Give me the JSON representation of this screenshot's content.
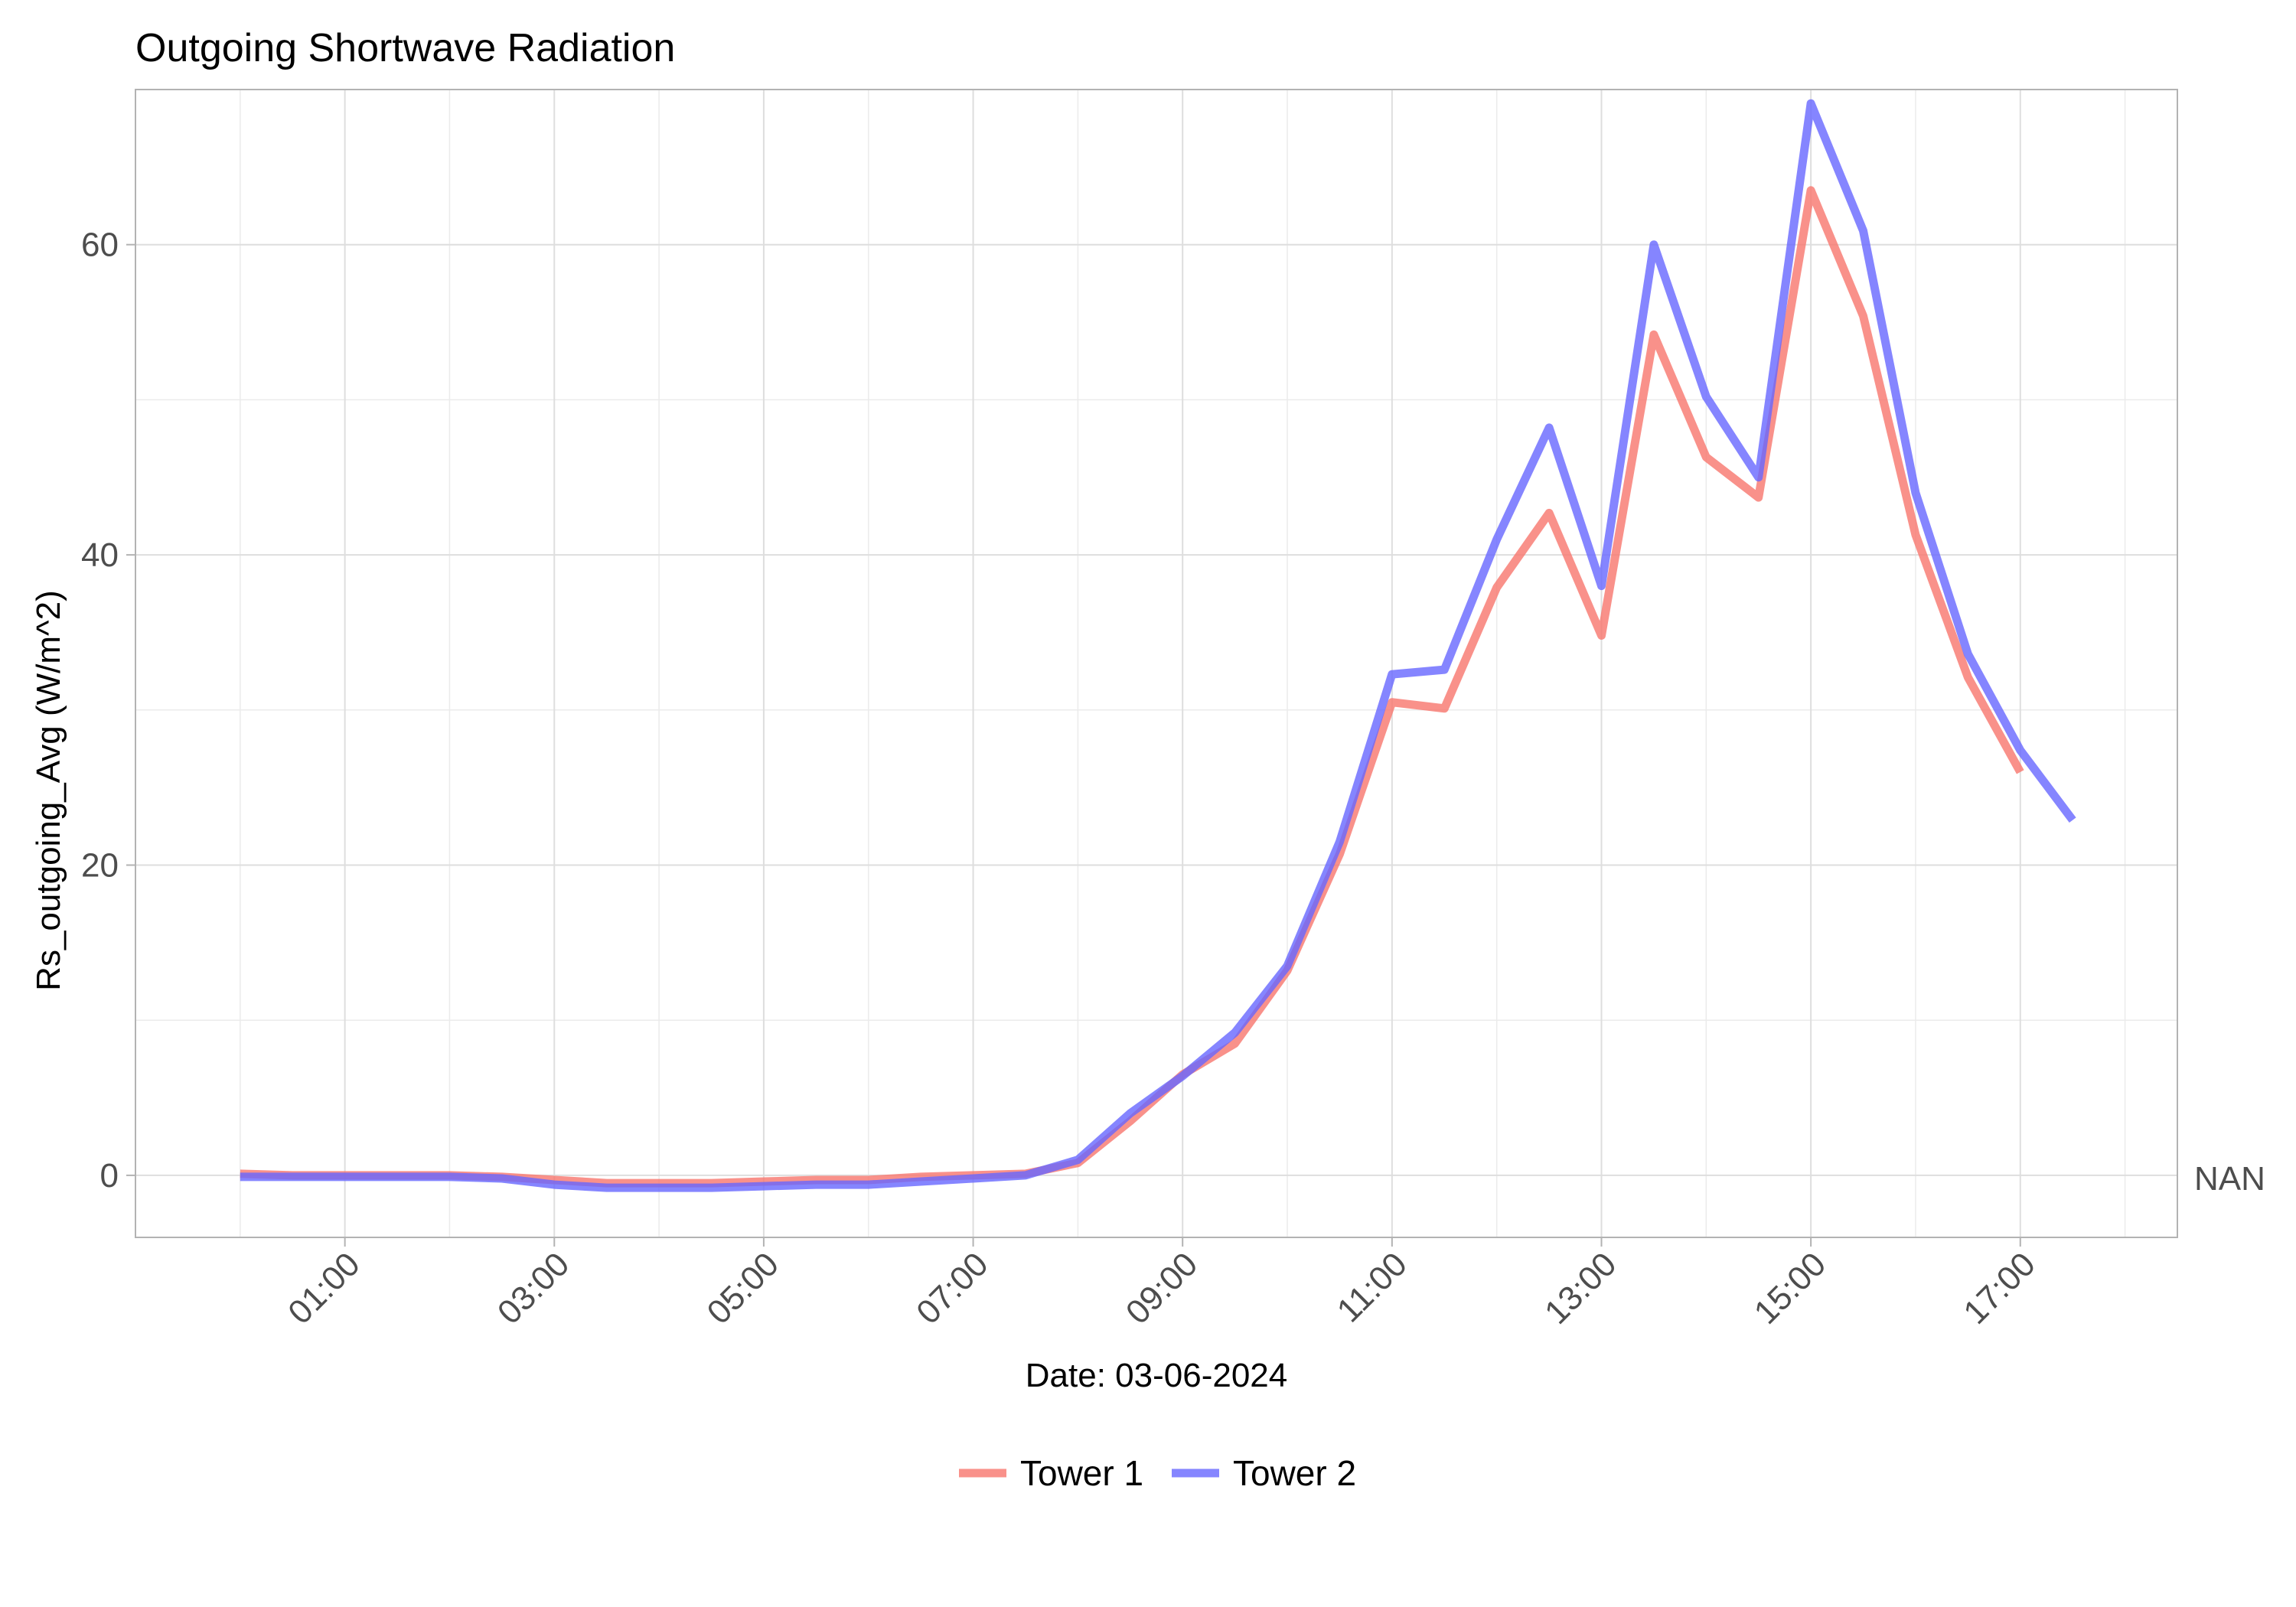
{
  "chart_data": {
    "type": "line",
    "title": "Outgoing Shortwave Radiation",
    "xlabel": "Date: 03-06-2024",
    "ylabel": "Rs_outgoing_Avg (W/m^2)",
    "x_ticks": [
      "01:00",
      "03:00",
      "05:00",
      "07:00",
      "09:00",
      "11:00",
      "13:00",
      "15:00",
      "17:00"
    ],
    "y_ticks": [
      0,
      20,
      40,
      60
    ],
    "xlim": [
      "-1:00",
      "18:30"
    ],
    "ylim": [
      -4,
      70
    ],
    "secondary_y_label": "NAN",
    "grid": true,
    "legend_position": "bottom",
    "series": [
      {
        "name": "Tower 1",
        "color": "#F8766D",
        "x": [
          "00:00",
          "00:30",
          "01:00",
          "01:30",
          "02:00",
          "02:30",
          "03:00",
          "03:30",
          "04:00",
          "04:30",
          "05:00",
          "05:30",
          "06:00",
          "06:30",
          "07:00",
          "07:30",
          "08:00",
          "08:30",
          "09:00",
          "09:30",
          "10:00",
          "10:30",
          "11:00",
          "11:30",
          "12:00",
          "12:30",
          "13:00",
          "13:30",
          "14:00",
          "14:30",
          "15:00",
          "15:30",
          "16:00",
          "16:30",
          "17:00"
        ],
        "values": [
          0.1,
          0.0,
          0.0,
          0.0,
          0.0,
          -0.1,
          -0.3,
          -0.5,
          -0.5,
          -0.5,
          -0.4,
          -0.3,
          -0.3,
          -0.1,
          0.0,
          0.1,
          0.8,
          3.5,
          6.5,
          8.5,
          13.2,
          20.7,
          30.5,
          30.1,
          37.9,
          42.7,
          34.8,
          54.2,
          46.3,
          43.7,
          63.5,
          55.4,
          41.3,
          32.1,
          26.0
        ]
      },
      {
        "name": "Tower 2",
        "color": "#6666FF",
        "x": [
          "00:00",
          "00:30",
          "01:00",
          "01:30",
          "02:00",
          "02:30",
          "03:00",
          "03:30",
          "04:00",
          "04:30",
          "05:00",
          "05:30",
          "06:00",
          "06:30",
          "07:00",
          "07:30",
          "08:00",
          "08:30",
          "09:00",
          "09:30",
          "10:00",
          "10:30",
          "11:00",
          "11:30",
          "12:00",
          "12:30",
          "13:00",
          "13:30",
          "14:00",
          "14:30",
          "15:00",
          "15:30",
          "16:00",
          "16:30",
          "17:00",
          "17:30"
        ],
        "values": [
          -0.1,
          -0.1,
          -0.1,
          -0.1,
          -0.1,
          -0.2,
          -0.6,
          -0.8,
          -0.8,
          -0.8,
          -0.7,
          -0.6,
          -0.6,
          -0.4,
          -0.2,
          0.0,
          1.0,
          4.0,
          6.4,
          9.2,
          13.5,
          21.5,
          32.3,
          32.6,
          41.0,
          48.2,
          38.0,
          60.0,
          50.2,
          45.0,
          69.1,
          60.9,
          44.0,
          33.6,
          27.4,
          22.9
        ]
      }
    ]
  }
}
